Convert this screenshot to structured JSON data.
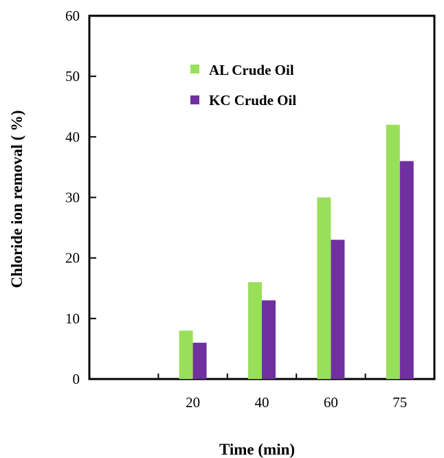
{
  "chart_data": {
    "type": "bar",
    "title": "",
    "xlabel": "Time (min)",
    "ylabel": "Chloride ion removal ( %)",
    "categories": [
      "20",
      "40",
      "60",
      "75"
    ],
    "series": [
      {
        "name": "AL Crude Oil",
        "values": [
          8,
          16,
          30,
          42
        ],
        "color": "#99e05a"
      },
      {
        "name": "KC Crude Oil",
        "values": [
          6,
          13,
          23,
          36
        ],
        "color": "#7031a0"
      }
    ],
    "ylim": [
      0,
      60
    ],
    "yticks": [
      "0",
      "10",
      "20",
      "30",
      "40",
      "50",
      "60"
    ],
    "grid": false,
    "legend_position": "top-center"
  }
}
